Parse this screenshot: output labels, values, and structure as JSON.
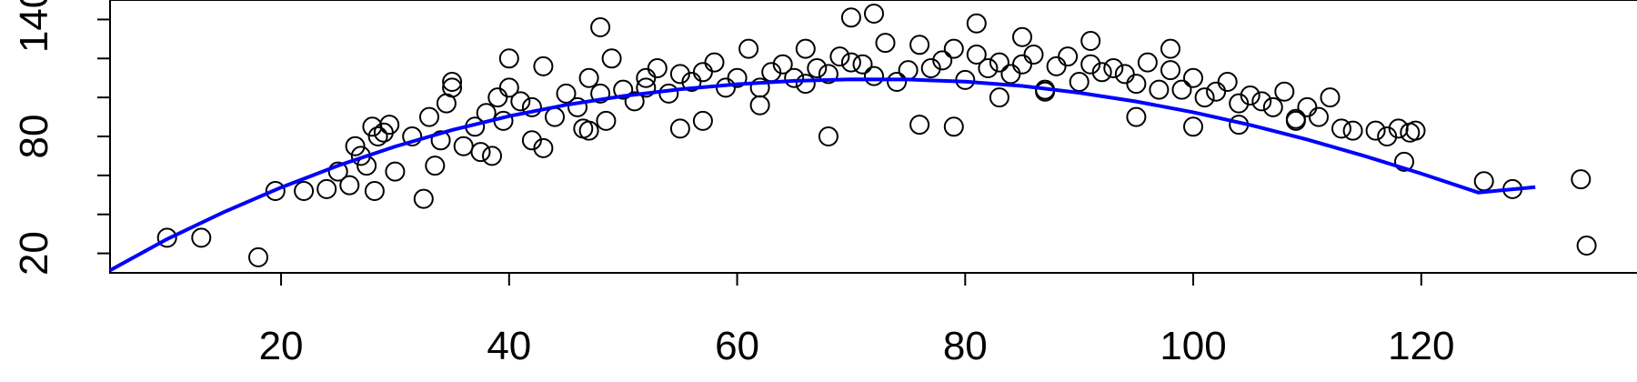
{
  "chart_data": {
    "type": "scatter",
    "title": "",
    "xlabel": "",
    "ylabel": "",
    "xlim": [
      5,
      139
    ],
    "ylim": [
      10,
      150
    ],
    "x_ticks": [
      20,
      40,
      60,
      80,
      100,
      120
    ],
    "y_ticks": [
      20,
      80,
      140
    ],
    "x_tick_labels": [
      "20",
      "40",
      "60",
      "80",
      "100",
      "120"
    ],
    "y_tick_labels": [
      "20",
      "80",
      "140"
    ],
    "grid": false,
    "legend": "none",
    "colors": {
      "points": "#000000",
      "curve": "#0000ff",
      "axes": "#000000"
    },
    "series": [
      {
        "kind": "points",
        "x": [
          10,
          13,
          18,
          19.5,
          22,
          24,
          25,
          26,
          26.5,
          27,
          27.5,
          28,
          28.2,
          28.5,
          29,
          29.5,
          30,
          31.5,
          32.5,
          33,
          33.5,
          34,
          34.5,
          35,
          36,
          37,
          37.5,
          38,
          38.5,
          39,
          39.5,
          40,
          40,
          41,
          42,
          42,
          43,
          44,
          45,
          46,
          46.5,
          47,
          48,
          48.5,
          49,
          50,
          51,
          52,
          53,
          54,
          55,
          56,
          57,
          58,
          59,
          60,
          61,
          62,
          63,
          64,
          65,
          66,
          67,
          68,
          69,
          70,
          71,
          72,
          73,
          74,
          75,
          76,
          77,
          78,
          79,
          80,
          81,
          82,
          83,
          84,
          85,
          86,
          87,
          88,
          89,
          90,
          91,
          92,
          93,
          94,
          95,
          96,
          97,
          98,
          99,
          100,
          101,
          102,
          103,
          104,
          105,
          106,
          107,
          108,
          109,
          110,
          111,
          112,
          113,
          114,
          116,
          117,
          118,
          118.5,
          119,
          119.5,
          125.5,
          128,
          134,
          134.5,
          70,
          72,
          68,
          81,
          79,
          85,
          87,
          98,
          91,
          62,
          55,
          43,
          52,
          35,
          47,
          48,
          66,
          76,
          83,
          95,
          100,
          104,
          109,
          57
        ],
        "y": [
          28,
          28,
          18,
          52,
          52,
          53,
          62,
          55,
          75,
          70,
          65,
          85,
          52,
          80,
          82,
          86,
          62,
          80,
          48,
          90,
          65,
          78,
          97,
          108,
          75,
          85,
          72,
          92,
          70,
          100,
          88,
          120,
          105,
          98,
          95,
          78,
          116,
          90,
          102,
          95,
          84,
          110,
          102,
          88,
          120,
          104,
          98,
          110,
          115,
          102,
          112,
          108,
          113,
          118,
          105,
          110,
          125,
          105,
          113,
          117,
          110,
          125,
          115,
          112,
          121,
          118,
          117,
          111,
          128,
          108,
          114,
          127,
          115,
          119,
          125,
          109,
          122,
          115,
          118,
          112,
          117,
          122,
          104,
          116,
          121,
          108,
          117,
          113,
          115,
          112,
          107,
          118,
          104,
          114,
          104,
          110,
          100,
          103,
          108,
          97,
          101,
          98,
          95,
          103,
          88,
          95,
          90,
          100,
          84,
          83,
          83,
          80,
          84,
          67,
          82,
          83,
          57,
          53,
          58,
          24,
          141,
          143,
          80,
          138,
          85,
          131,
          103,
          125,
          129,
          96,
          84,
          74,
          105,
          105,
          83,
          136,
          107,
          86,
          100,
          90,
          85,
          86,
          89,
          88
        ]
      },
      {
        "kind": "fitted-curve",
        "x": [
          5,
          10,
          15,
          20,
          25,
          30,
          35,
          40,
          45,
          50,
          55,
          60,
          65,
          70,
          75,
          80,
          85,
          90,
          95,
          100,
          105,
          110,
          115,
          120,
          125,
          130
        ],
        "y": [
          11.3,
          27.3,
          41.2,
          53.8,
          65.0,
          74.8,
          83.3,
          90.4,
          96.2,
          100.7,
          104.2,
          106.8,
          108.5,
          109.3,
          109.2,
          108.1,
          105.9,
          102.4,
          97.9,
          92.4,
          85.9,
          78.4,
          70.0,
          60.9,
          51.2,
          54.0
        ]
      }
    ]
  }
}
